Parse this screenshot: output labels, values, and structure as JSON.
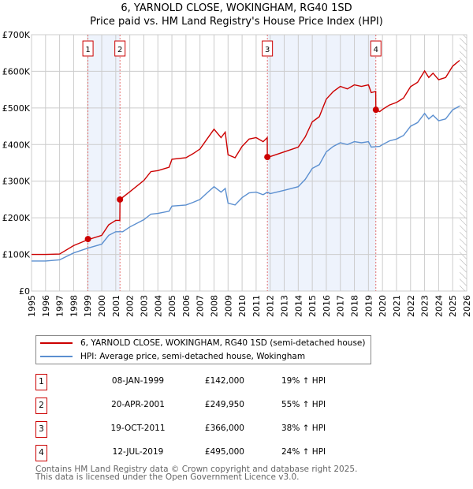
{
  "title_line1": "6, YARNOLD CLOSE, WOKINGHAM, RG40 1SD",
  "title_line2": "Price paid vs. HM Land Registry's House Price Index (HPI)",
  "chart_data": {
    "type": "line",
    "title": "Price paid vs. HM Land Registry's House Price Index (HPI)",
    "xlim": [
      1995,
      2026
    ],
    "ylim": [
      0,
      700000
    ],
    "y_ticks": [
      {
        "v": 0,
        "label": "£0"
      },
      {
        "v": 100000,
        "label": "£100K"
      },
      {
        "v": 200000,
        "label": "£200K"
      },
      {
        "v": 300000,
        "label": "£300K"
      },
      {
        "v": 400000,
        "label": "£400K"
      },
      {
        "v": 500000,
        "label": "£500K"
      },
      {
        "v": 600000,
        "label": "£600K"
      },
      {
        "v": 700000,
        "label": "£700K"
      }
    ],
    "x_ticks": [
      "1995",
      "1996",
      "1997",
      "1998",
      "1999",
      "2000",
      "2001",
      "2002",
      "2003",
      "2004",
      "2005",
      "2006",
      "2007",
      "2008",
      "2009",
      "2010",
      "2011",
      "2012",
      "2013",
      "2014",
      "2015",
      "2016",
      "2017",
      "2018",
      "2019",
      "2020",
      "2021",
      "2022",
      "2023",
      "2024",
      "2025",
      "2026"
    ],
    "grid": true,
    "legend_placement": "below",
    "forecast_hatch_from": 2025.5,
    "colors": {
      "property": "#cc0000",
      "hpi": "#5b8fd0",
      "shade": "#eef3fc"
    },
    "series": [
      {
        "name": "6, YARNOLD CLOSE, WOKINGHAM, RG40 1SD (semi-detached house)",
        "color": "#cc0000",
        "x": [
          1995,
          1996,
          1997,
          1998,
          1999,
          2000,
          2000.5,
          2001,
          2001.29,
          2001.3,
          2002,
          2003,
          2003.5,
          2004,
          2004.8,
          2005,
          2006,
          2006.5,
          2007,
          2007.5,
          2008,
          2008.5,
          2008.8,
          2009,
          2009.5,
          2010,
          2010.5,
          2011,
          2011.5,
          2011.79,
          2011.8,
          2012,
          2013,
          2014,
          2014.5,
          2015,
          2015.5,
          2016,
          2016.5,
          2017,
          2017.5,
          2018,
          2018.5,
          2019,
          2019.2,
          2019.52,
          2019.53,
          2019.8,
          2020,
          2020.5,
          2021,
          2021.5,
          2022,
          2022.5,
          2023,
          2023.3,
          2023.6,
          2024,
          2024.5,
          2025,
          2025.5
        ],
        "y": [
          100000,
          100000,
          101000,
          124000,
          140000,
          152000,
          181000,
          193000,
          193000,
          250000,
          271000,
          302000,
          326000,
          329000,
          338000,
          360000,
          364000,
          375000,
          388000,
          415000,
          442000,
          419000,
          434000,
          372000,
          364000,
          395000,
          415000,
          419000,
          408000,
          419000,
          366000,
          367000,
          380000,
          393000,
          421000,
          462000,
          476000,
          524000,
          545000,
          559000,
          552000,
          563000,
          559000,
          563000,
          542000,
          545000,
          495000,
          490000,
          496000,
          508000,
          515000,
          527000,
          558000,
          570000,
          601000,
          583000,
          595000,
          577000,
          583000,
          614000,
          630000
        ]
      },
      {
        "name": "HPI: Average price, semi-detached house, Wokingham",
        "color": "#5b8fd0",
        "x": [
          1995,
          1996,
          1997,
          1998,
          1999,
          2000,
          2000.5,
          2001,
          2001.5,
          2002,
          2003,
          2003.5,
          2004,
          2004.8,
          2005,
          2006,
          2006.5,
          2007,
          2007.5,
          2008,
          2008.5,
          2008.8,
          2009,
          2009.5,
          2010,
          2010.5,
          2011,
          2011.5,
          2011.8,
          2012,
          2013,
          2014,
          2014.5,
          2015,
          2015.5,
          2016,
          2016.5,
          2017,
          2017.5,
          2018,
          2018.5,
          2019,
          2019.2,
          2019.8,
          2020,
          2020.5,
          2021,
          2021.5,
          2022,
          2022.5,
          2023,
          2023.3,
          2023.6,
          2024,
          2024.5,
          2025,
          2025.5
        ],
        "y": [
          82000,
          82000,
          85000,
          104000,
          117000,
          128000,
          152000,
          162000,
          162000,
          175000,
          195000,
          210000,
          212000,
          218000,
          232000,
          235000,
          242000,
          250000,
          268000,
          285000,
          270000,
          280000,
          240000,
          235000,
          255000,
          268000,
          270000,
          263000,
          270000,
          266000,
          275000,
          285000,
          305000,
          335000,
          345000,
          380000,
          395000,
          405000,
          400000,
          408000,
          405000,
          408000,
          393000,
          395000,
          400000,
          410000,
          415000,
          425000,
          450000,
          460000,
          485000,
          470000,
          480000,
          465000,
          470000,
          495000,
          505000
        ]
      }
    ],
    "sales": [
      {
        "n": "1",
        "date": "08-JAN-1999",
        "x": 1999.02,
        "price": 142000,
        "price_label": "£142,000",
        "hpi": "19% ↑ HPI"
      },
      {
        "n": "2",
        "date": "20-APR-2001",
        "x": 2001.3,
        "price": 249950,
        "price_label": "£249,950",
        "hpi": "55% ↑ HPI"
      },
      {
        "n": "3",
        "date": "19-OCT-2011",
        "x": 2011.8,
        "price": 366000,
        "price_label": "£366,000",
        "hpi": "38% ↑ HPI"
      },
      {
        "n": "4",
        "date": "12-JUL-2019",
        "x": 2019.53,
        "price": 495000,
        "price_label": "£495,000",
        "hpi": "24% ↑ HPI"
      }
    ]
  },
  "footer_line1": "Contains HM Land Registry data © Crown copyright and database right 2025.",
  "footer_line2": "This data is licensed under the Open Government Licence v3.0."
}
